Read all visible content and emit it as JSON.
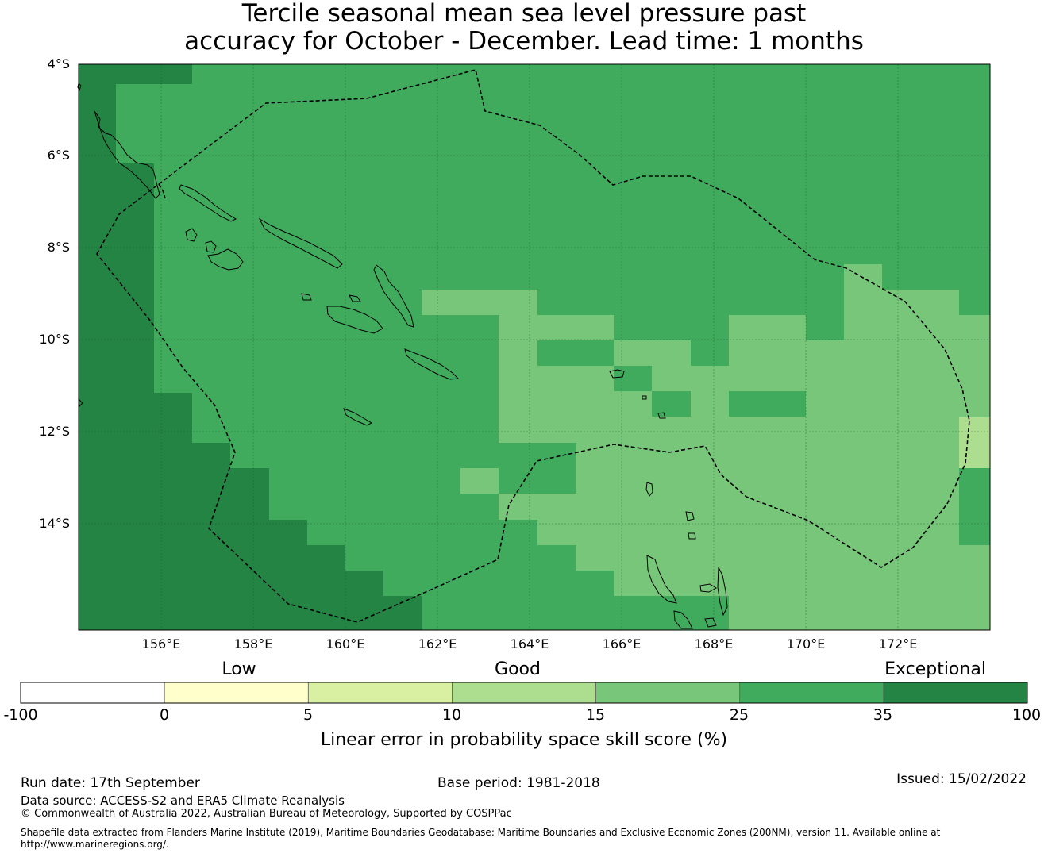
{
  "title": {
    "line1": "Tercile seasonal mean sea level pressure past",
    "line2": "accuracy for October - December. Lead time: 1 months"
  },
  "map": {
    "lat_labels": [
      "4°S",
      "6°S",
      "8°S",
      "10°S",
      "12°S",
      "14°S"
    ],
    "lon_labels": [
      "156°E",
      "158°E",
      "160°E",
      "162°E",
      "164°E",
      "166°E",
      "168°E",
      "170°E",
      "172°E"
    ],
    "colors": {
      "exceptional": "#238443",
      "skill_25_35": "#41ab5d",
      "skill_15_25": "#78c679",
      "skill_10_15": "#addd8e",
      "skill_5_10": "#d9f0a3",
      "skill_0_5": "#ffffcc",
      "negative": "#ffffff"
    }
  },
  "colorbar": {
    "category_labels": {
      "low": "Low",
      "good": "Good",
      "exceptional": "Exceptional"
    },
    "ticks": [
      "-100",
      "0",
      "5",
      "10",
      "15",
      "25",
      "35",
      "100"
    ],
    "colors": [
      "#ffffff",
      "#ffffcc",
      "#d9f0a3",
      "#addd8e",
      "#78c679",
      "#41ab5d",
      "#238443"
    ],
    "title": "Linear error in probability space skill score (%)"
  },
  "footer": {
    "run_date": "Run date: 17th September",
    "base_period": "Base period: 1981-2018",
    "issued": "Issued: 15/02/2022",
    "data_source": "Data source: ACCESS-S2 and ERA5 Climate Reanalysis",
    "copyright": "© Commonwealth of Australia 2022, Australian Bureau of Meteorology, Supported by COSPPac",
    "shapefile_line1": "Shapefile data extracted from Flanders Marine Institute (2019), Maritime Boundaries Geodatabase: Maritime Boundaries and Exclusive Economic Zones (200NM), version 11. Available online at",
    "shapefile_line2": "http://www.marineregions.org/."
  }
}
